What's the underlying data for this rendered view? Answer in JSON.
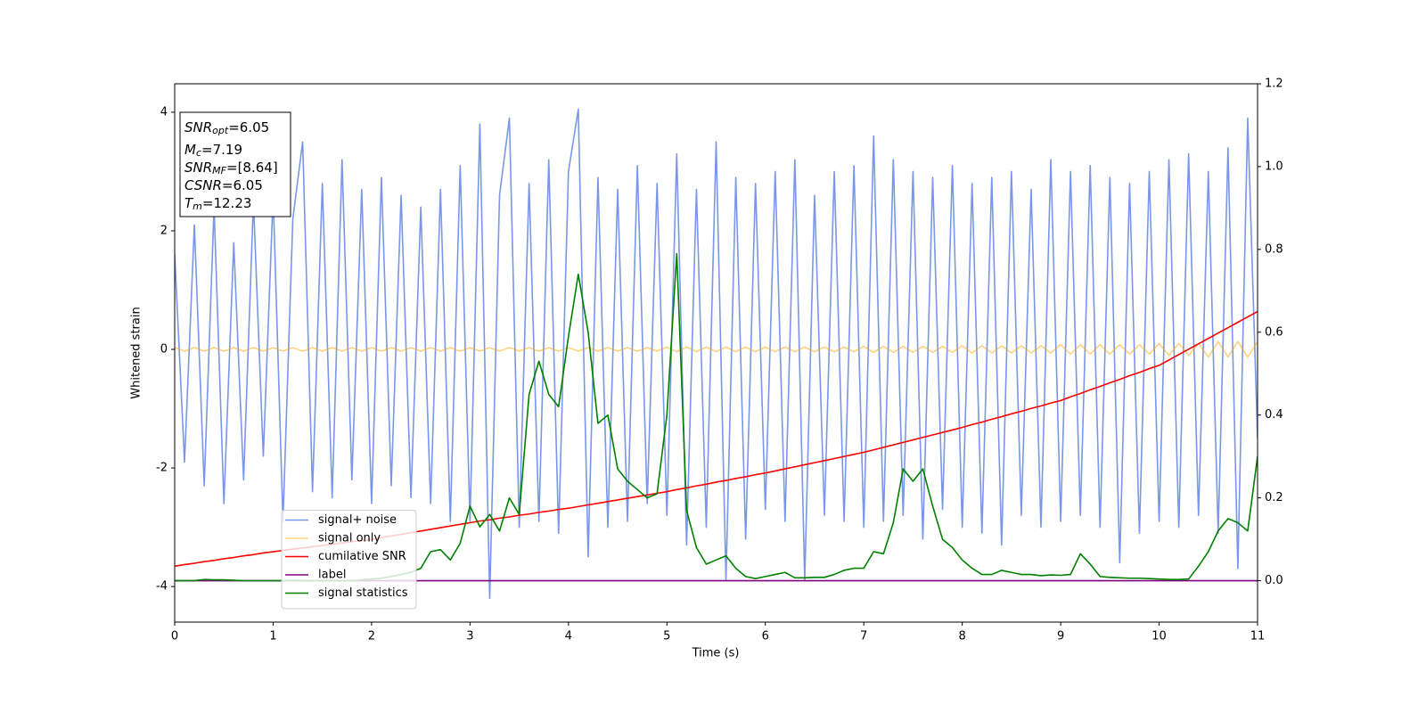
{
  "chart_data": {
    "type": "line",
    "xlabel": "Time (s)",
    "ylabel": "Whitened strain",
    "xlim": [
      0,
      11
    ],
    "xticks": [
      0,
      1,
      2,
      3,
      4,
      5,
      6,
      7,
      8,
      9,
      10,
      11
    ],
    "ylim": [
      -4.6,
      4.48
    ],
    "yticks": [
      -4,
      -2,
      0,
      2,
      4
    ],
    "y2lim": [
      -0.1,
      1.2
    ],
    "y2ticks": [
      {
        "value": 0,
        "label": "0.0"
      },
      {
        "value": 0.2,
        "label": "0.2"
      },
      {
        "value": 0.4,
        "label": "0.4"
      },
      {
        "value": 0.6,
        "label": "0.6"
      },
      {
        "value": 0.8,
        "label": "0.8"
      },
      {
        "value": 1.0,
        "label": "1.0"
      },
      {
        "value": 1.2,
        "label": "1.2"
      }
    ],
    "legend": "lower left",
    "annotation": [
      {
        "symbol": "SNR",
        "subscript": "opt",
        "text": "=6.05"
      },
      {
        "symbol": "M",
        "subscript": "c",
        "text": "=7.19"
      },
      {
        "symbol": "SNR",
        "subscript": "MF",
        "text": "=[8.64]"
      },
      {
        "symbol": "CSNR",
        "text": "=6.05"
      },
      {
        "symbol": "T",
        "subscript": "m",
        "text": "=12.23"
      }
    ],
    "x": [
      0,
      0.1,
      0.2,
      0.3,
      0.4,
      0.5,
      0.6,
      0.7,
      0.8,
      0.9,
      1,
      1.1,
      1.2,
      1.3,
      1.4,
      1.5,
      1.6,
      1.7,
      1.8,
      1.9,
      2,
      2.1,
      2.2,
      2.3,
      2.4,
      2.5,
      2.6,
      2.7,
      2.8,
      2.9,
      3,
      3.1,
      3.2,
      3.3,
      3.4,
      3.5,
      3.6,
      3.7,
      3.8,
      3.9,
      4,
      4.1,
      4.2,
      4.3,
      4.4,
      4.5,
      4.6,
      4.7,
      4.8,
      4.9,
      5,
      5.1,
      5.2,
      5.3,
      5.4,
      5.5,
      5.6,
      5.7,
      5.8,
      5.9,
      6,
      6.1,
      6.2,
      6.3,
      6.4,
      6.5,
      6.6,
      6.7,
      6.8,
      6.9,
      7,
      7.1,
      7.2,
      7.3,
      7.4,
      7.5,
      7.6,
      7.7,
      7.8,
      7.9,
      8,
      8.1,
      8.2,
      8.3,
      8.4,
      8.5,
      8.6,
      8.7,
      8.8,
      8.9,
      9,
      9.1,
      9.2,
      9.3,
      9.4,
      9.5,
      9.6,
      9.7,
      9.8,
      9.9,
      10,
      10.1,
      10.2,
      10.3,
      10.4,
      10.5,
      10.6,
      10.7,
      10.8,
      10.9,
      11
    ],
    "series": [
      {
        "name": "signal+ noise",
        "color": "royalblue",
        "alpha": 0.7,
        "values": [
          1.6,
          -1.9,
          2.1,
          -2.3,
          2.4,
          -2.6,
          1.8,
          -2.2,
          2.5,
          -1.8,
          2.6,
          -2.9,
          2.2,
          3.5,
          -2.4,
          2.8,
          -2.5,
          3.2,
          -2.2,
          2.7,
          -2.6,
          2.9,
          -2.3,
          2.6,
          -2.5,
          2.4,
          -2.6,
          2.7,
          -2.9,
          3.1,
          -2.9,
          3.8,
          -4.2,
          2.6,
          3.9,
          -3.0,
          2.8,
          -2.9,
          3.2,
          -3.1,
          3.0,
          4.05,
          -3.5,
          2.9,
          -3.0,
          2.7,
          -2.9,
          3.1,
          -2.6,
          2.8,
          -2.8,
          3.3,
          -3.3,
          2.7,
          -3.0,
          3.5,
          -3.9,
          2.9,
          -3.2,
          2.8,
          -2.7,
          3.0,
          -2.9,
          3.2,
          -3.9,
          2.6,
          -2.8,
          3.0,
          -2.9,
          3.1,
          -3.0,
          3.6,
          -2.9,
          3.2,
          -2.8,
          3.0,
          -3.2,
          2.9,
          -2.7,
          3.1,
          -3.0,
          2.8,
          -3.1,
          2.9,
          -3.3,
          3.0,
          -2.8,
          2.7,
          -3.0,
          3.2,
          -2.9,
          3.0,
          -2.8,
          3.1,
          -3.0,
          2.9,
          -3.6,
          2.8,
          -3.1,
          3.0,
          -2.9,
          3.2,
          -3.0,
          3.3,
          -2.8,
          3.0,
          -3.1,
          3.4,
          -3.7,
          3.9,
          -1.5
        ]
      },
      {
        "name": "signal only",
        "color": "orange",
        "alpha": 0.5,
        "values": [
          0.03,
          -0.03,
          0.03,
          -0.03,
          0.03,
          -0.03,
          0.03,
          -0.03,
          0.03,
          -0.03,
          0.03,
          -0.03,
          0.03,
          -0.03,
          0.03,
          -0.03,
          0.03,
          -0.03,
          0.03,
          -0.03,
          0.03,
          -0.03,
          0.03,
          -0.03,
          0.03,
          -0.03,
          0.03,
          -0.03,
          0.03,
          -0.03,
          0.03,
          -0.03,
          0.03,
          -0.03,
          0.03,
          -0.03,
          0.03,
          -0.03,
          0.03,
          -0.03,
          0.03,
          -0.03,
          0.03,
          -0.03,
          0.03,
          -0.03,
          0.03,
          -0.03,
          0.03,
          -0.03,
          0.04,
          -0.04,
          0.04,
          -0.04,
          0.04,
          -0.04,
          0.04,
          -0.04,
          0.04,
          -0.04,
          0.04,
          -0.04,
          0.04,
          -0.04,
          0.04,
          -0.04,
          0.04,
          -0.04,
          0.04,
          -0.04,
          0.05,
          -0.05,
          0.05,
          -0.05,
          0.05,
          -0.05,
          0.05,
          -0.05,
          0.05,
          -0.05,
          0.06,
          -0.06,
          0.06,
          -0.06,
          0.06,
          -0.06,
          0.06,
          -0.06,
          0.06,
          -0.06,
          0.08,
          -0.08,
          0.08,
          -0.08,
          0.08,
          -0.08,
          0.08,
          -0.08,
          0.08,
          -0.08,
          0.1,
          -0.1,
          0.1,
          -0.1,
          0.1,
          -0.13,
          0.13,
          -0.13,
          0.13,
          -0.13,
          0.13
        ]
      },
      {
        "name": "cumilative SNR",
        "color": "red",
        "axis": "y2",
        "values": [
          0.035,
          0.039,
          0.042,
          0.046,
          0.049,
          0.053,
          0.056,
          0.06,
          0.063,
          0.067,
          0.07,
          0.073,
          0.076,
          0.079,
          0.082,
          0.085,
          0.088,
          0.091,
          0.094,
          0.097,
          0.1,
          0.104,
          0.108,
          0.112,
          0.116,
          0.12,
          0.124,
          0.128,
          0.132,
          0.136,
          0.14,
          0.144,
          0.147,
          0.151,
          0.154,
          0.158,
          0.161,
          0.165,
          0.168,
          0.172,
          0.175,
          0.179,
          0.183,
          0.187,
          0.191,
          0.195,
          0.199,
          0.203,
          0.207,
          0.211,
          0.215,
          0.22,
          0.224,
          0.229,
          0.233,
          0.238,
          0.242,
          0.247,
          0.251,
          0.256,
          0.26,
          0.265,
          0.27,
          0.275,
          0.28,
          0.285,
          0.29,
          0.295,
          0.3,
          0.305,
          0.31,
          0.316,
          0.322,
          0.328,
          0.334,
          0.34,
          0.346,
          0.352,
          0.358,
          0.364,
          0.37,
          0.377,
          0.383,
          0.39,
          0.396,
          0.403,
          0.409,
          0.416,
          0.422,
          0.429,
          0.435,
          0.444,
          0.452,
          0.461,
          0.469,
          0.478,
          0.486,
          0.495,
          0.503,
          0.512,
          0.52,
          0.533,
          0.546,
          0.559,
          0.572,
          0.585,
          0.598,
          0.611,
          0.624,
          0.637,
          0.65
        ]
      },
      {
        "name": "label",
        "color": "purple",
        "axis": "y2",
        "x": [
          0,
          11
        ],
        "values": [
          0,
          0
        ]
      },
      {
        "name": "signal statistics",
        "color": "green",
        "axis": "y2",
        "values": [
          0,
          0,
          0,
          0.003,
          0.002,
          0.002,
          0.001,
          0,
          0,
          0,
          0,
          0,
          0.001,
          0,
          0,
          0,
          0,
          0,
          0,
          0.002,
          0.004,
          0.006,
          0.01,
          0.015,
          0.02,
          0.03,
          0.07,
          0.075,
          0.05,
          0.09,
          0.18,
          0.13,
          0.16,
          0.12,
          0.2,
          0.16,
          0.45,
          0.53,
          0.45,
          0.42,
          0.59,
          0.74,
          0.6,
          0.38,
          0.4,
          0.27,
          0.24,
          0.22,
          0.2,
          0.21,
          0.4,
          0.79,
          0.17,
          0.08,
          0.04,
          0.05,
          0.06,
          0.03,
          0.01,
          0.005,
          0.01,
          0.015,
          0.02,
          0.007,
          0.007,
          0.008,
          0.008,
          0.015,
          0.025,
          0.03,
          0.03,
          0.07,
          0.065,
          0.14,
          0.27,
          0.24,
          0.27,
          0.18,
          0.1,
          0.08,
          0.05,
          0.03,
          0.015,
          0.015,
          0.025,
          0.02,
          0.015,
          0.015,
          0.012,
          0.014,
          0.013,
          0.015,
          0.065,
          0.04,
          0.01,
          0.008,
          0.007,
          0.006,
          0.006,
          0.005,
          0.004,
          0.003,
          0.003,
          0.004,
          0.035,
          0.07,
          0.12,
          0.15,
          0.14,
          0.12,
          0.3
        ]
      }
    ]
  }
}
